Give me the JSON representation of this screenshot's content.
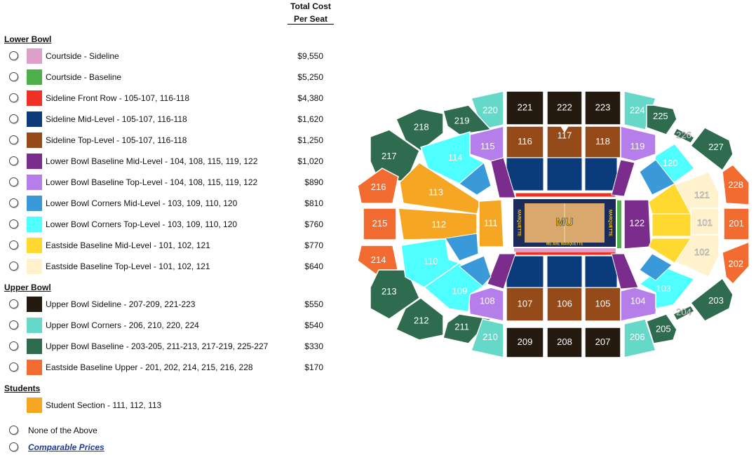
{
  "header": {
    "line1": "Total Cost",
    "line2": "Per Seat"
  },
  "groups": [
    {
      "title": "Lower Bowl",
      "items": [
        {
          "label": "Courtside - Sideline",
          "price": "$9,550",
          "color": "#DDA0C8"
        },
        {
          "label": "Courtside - Baseline",
          "price": "$5,250",
          "color": "#4DAF4A"
        },
        {
          "label": "Sideline Front Row - 105-107, 116-118",
          "price": "$4,380",
          "color": "#EE3124"
        },
        {
          "label": "Sideline Mid-Level - 105-107, 116-118",
          "price": "$1,620",
          "color": "#0B3B7A"
        },
        {
          "label": "Sideline Top-Level - 105-107, 116-118",
          "price": "$1,250",
          "color": "#954A1A"
        },
        {
          "label": "Lower Bowl Baseline Mid-Level - 104, 108, 115, 119, 122",
          "price": "$1,020",
          "color": "#7B2D8E"
        },
        {
          "label": "Lower Bowl Baseline Top-Level - 104, 108, 115, 119, 122",
          "price": "$890",
          "color": "#B57EEB"
        },
        {
          "label": "Lower Bowl Corners Mid-Level - 103, 109, 110, 120",
          "price": "$810",
          "color": "#3A9AD9"
        },
        {
          "label": "Lower Bowl Corners Top-Level - 103, 109, 110, 120",
          "price": "$760",
          "color": "#4FFFFF"
        },
        {
          "label": "Eastside Baseline Mid-Level - 101, 102, 121",
          "price": "$770",
          "color": "#FFD92F"
        },
        {
          "label": "Eastside Baseline Top-Level - 101, 102, 121",
          "price": "$640",
          "color": "#FFF2CC"
        }
      ]
    },
    {
      "title": "Upper Bowl",
      "items": [
        {
          "label": "Upper Bowl Sideline - 207-209, 221-223",
          "price": "$550",
          "color": "#241A10"
        },
        {
          "label": "Upper Bowl Corners - 206, 210, 220, 224",
          "price": "$540",
          "color": "#66D8C8"
        },
        {
          "label": "Upper Bowl Baseline - 203-205, 211-213, 217-219, 225-227",
          "price": "$330",
          "color": "#2E6B4F"
        },
        {
          "label": "Eastside Baseline Upper - 201, 202, 214, 215, 216, 228",
          "price": "$170",
          "color": "#F26B30"
        }
      ]
    },
    {
      "title": "Students",
      "items": [
        {
          "label": "Student Section - 111, 112, 113",
          "price": "",
          "color": "#F5A623",
          "no_radio": true
        }
      ]
    }
  ],
  "extra_options": [
    {
      "label": "None of the Above",
      "link": false
    },
    {
      "label": "Comparable Prices",
      "link": true
    }
  ],
  "map": {
    "court_text": "WE ARE MARQUETTE",
    "court_logo": "MU",
    "court_side_text": "MARQUETTE",
    "sections": [
      {
        "label": "220",
        "color": "#66D8C8"
      },
      {
        "label": "221",
        "color": "#241A10"
      },
      {
        "label": "222",
        "color": "#241A10"
      },
      {
        "label": "223",
        "color": "#241A10"
      },
      {
        "label": "224",
        "color": "#66D8C8"
      },
      {
        "label": "219",
        "color": "#2E6B4F"
      },
      {
        "label": "218",
        "color": "#2E6B4F"
      },
      {
        "label": "217",
        "color": "#2E6B4F"
      },
      {
        "label": "216",
        "color": "#F26B30"
      },
      {
        "label": "215",
        "color": "#F26B30"
      },
      {
        "label": "214",
        "color": "#F26B30"
      },
      {
        "label": "213",
        "color": "#2E6B4F"
      },
      {
        "label": "212",
        "color": "#2E6B4F"
      },
      {
        "label": "211",
        "color": "#2E6B4F"
      },
      {
        "label": "210",
        "color": "#66D8C8"
      },
      {
        "label": "209",
        "color": "#241A10"
      },
      {
        "label": "208",
        "color": "#241A10"
      },
      {
        "label": "207",
        "color": "#241A10"
      },
      {
        "label": "206",
        "color": "#66D8C8"
      },
      {
        "label": "205",
        "color": "#2E6B4F"
      },
      {
        "label": "204",
        "color": "#2E6B4F"
      },
      {
        "label": "203",
        "color": "#2E6B4F"
      },
      {
        "label": "202",
        "color": "#F26B30"
      },
      {
        "label": "201",
        "color": "#F26B30"
      },
      {
        "label": "228",
        "color": "#F26B30"
      },
      {
        "label": "227",
        "color": "#2E6B4F"
      },
      {
        "label": "226",
        "color": "#2E6B4F"
      },
      {
        "label": "225",
        "color": "#2E6B4F"
      },
      {
        "label": "116",
        "color": "#954A1A"
      },
      {
        "label": "117",
        "color": "#954A1A"
      },
      {
        "label": "118",
        "color": "#954A1A"
      },
      {
        "label": "107",
        "color": "#954A1A"
      },
      {
        "label": "106",
        "color": "#954A1A"
      },
      {
        "label": "105",
        "color": "#954A1A"
      },
      {
        "label": "115",
        "color": "#B57EEB"
      },
      {
        "label": "119",
        "color": "#B57EEB"
      },
      {
        "label": "108",
        "color": "#B57EEB"
      },
      {
        "label": "104",
        "color": "#B57EEB"
      },
      {
        "label": "114",
        "color": "#4FFFFF"
      },
      {
        "label": "110",
        "color": "#4FFFFF"
      },
      {
        "label": "109",
        "color": "#4FFFFF"
      },
      {
        "label": "103",
        "color": "#4FFFFF"
      },
      {
        "label": "120",
        "color": "#4FFFFF"
      },
      {
        "label": "113",
        "color": "#F5A623"
      },
      {
        "label": "112",
        "color": "#F5A623"
      },
      {
        "label": "111",
        "color": "#F5A623"
      },
      {
        "label": "122",
        "color": "#7B2D8E"
      },
      {
        "label": "121",
        "color": "#FFF2CC"
      },
      {
        "label": "101",
        "color": "#FFF2CC"
      },
      {
        "label": "102",
        "color": "#FFF2CC"
      }
    ]
  }
}
